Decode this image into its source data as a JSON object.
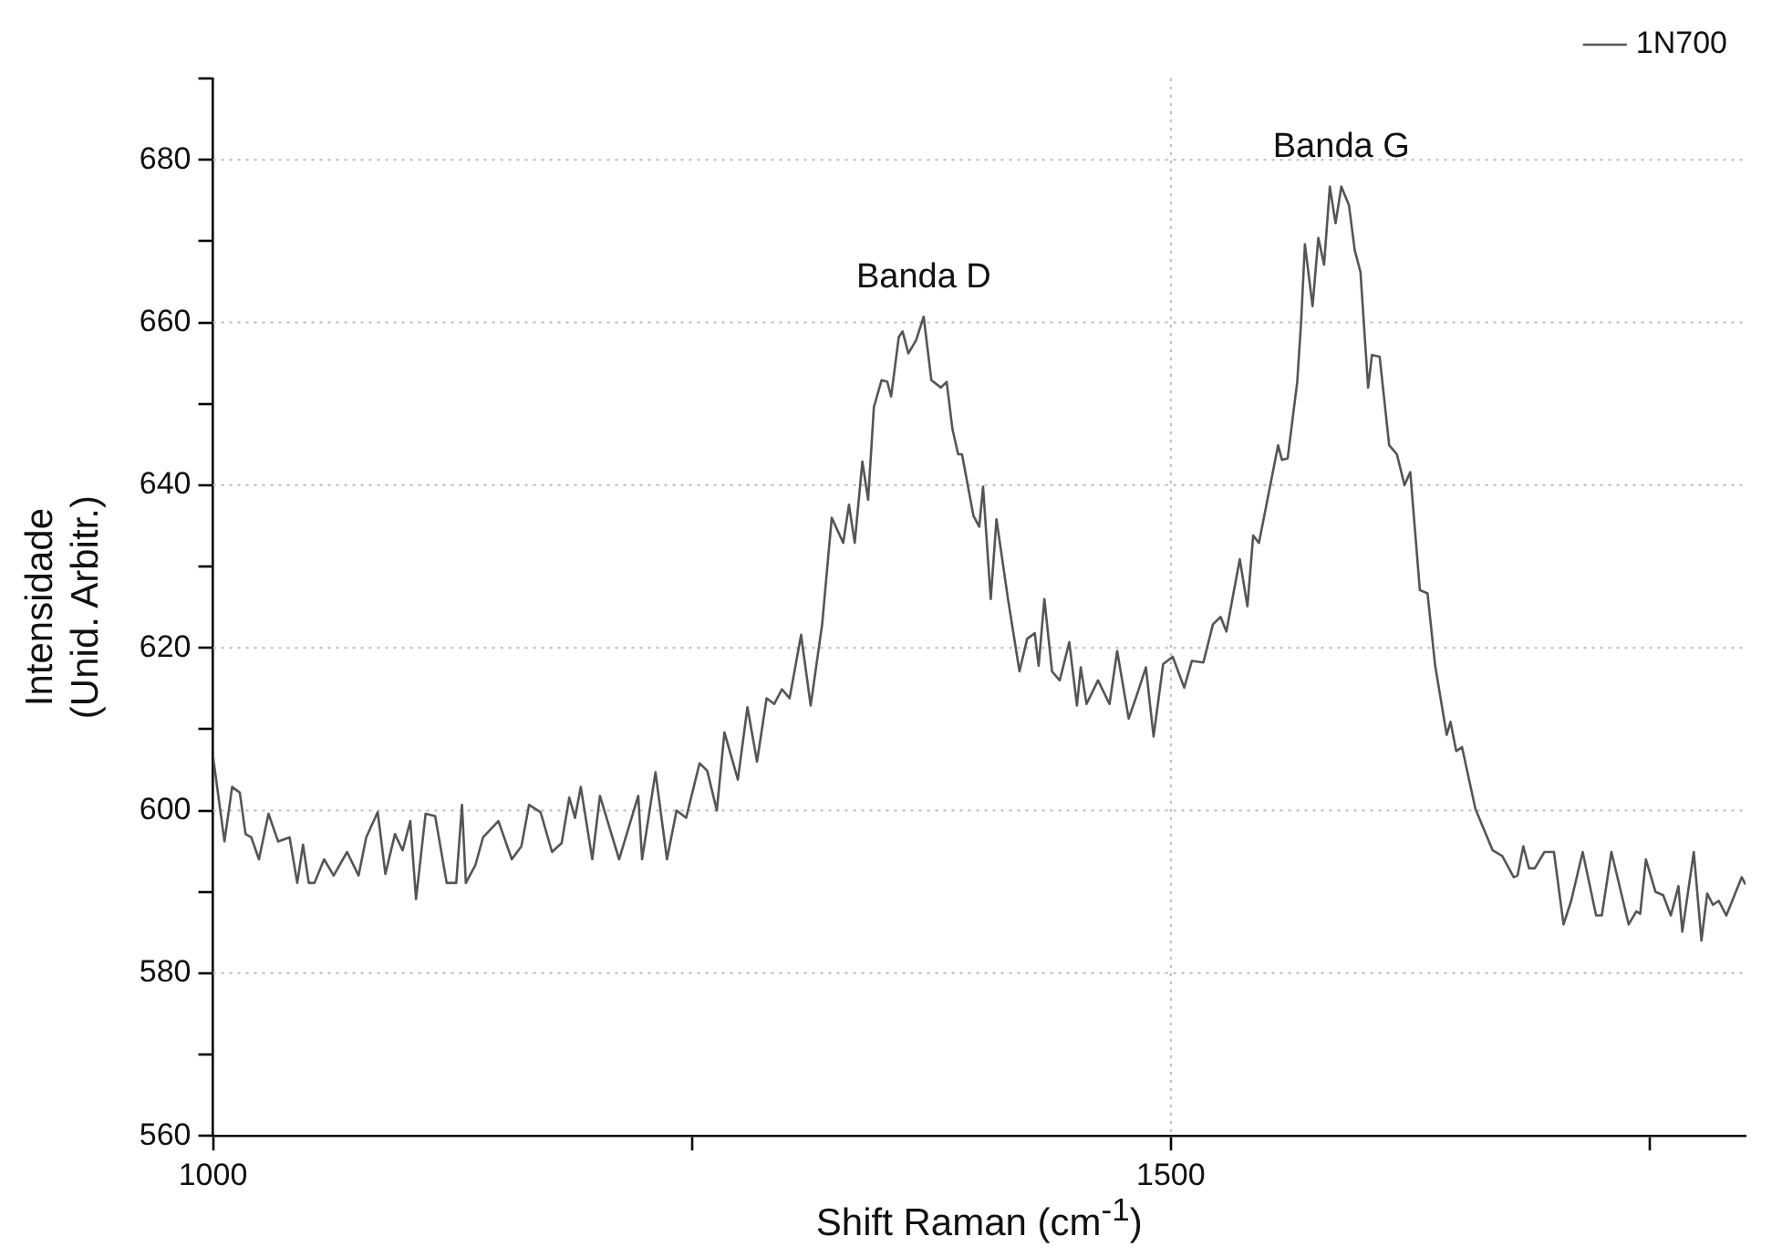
{
  "chart_data": {
    "type": "line",
    "xlabel": "Shift Raman (cm$^{-1}$)",
    "ylabel": "Intensidade (Unid. Arbitr.)",
    "xlim": [
      1000,
      1800
    ],
    "xticks": [
      1000,
      {
        "value": 1250,
        "label": null
      },
      1500,
      {
        "value": 1750,
        "label": null
      }
    ],
    "ylim": [
      560,
      690
    ],
    "yticks": [
      560,
      {
        "value": 570,
        "label": null
      },
      580,
      {
        "value": 590,
        "label": null
      },
      600,
      {
        "value": 610,
        "label": null
      },
      620,
      {
        "value": 630,
        "label": null
      },
      640,
      {
        "value": 650,
        "label": null
      },
      660,
      {
        "value": 670,
        "label": null
      },
      680,
      {
        "value": 690,
        "label": null
      }
    ],
    "grid": true,
    "legend": "top right",
    "marker": "none",
    "line_style": "solid",
    "annotations": [
      {
        "text": "Banda D",
        "x": 1371,
        "y": 660.7
      },
      {
        "text": "Banda G",
        "x": 1589,
        "y": 676.7
      }
    ],
    "series": [
      {
        "name": "1N700",
        "color": "#555555",
        "x": [
          1000,
          1006,
          1010,
          1014,
          1017,
          1020,
          1024,
          1029,
          1034,
          1040,
          1044,
          1047,
          1050,
          1053,
          1058,
          1063,
          1070,
          1076,
          1080,
          1086,
          1090,
          1095,
          1099,
          1103,
          1106,
          1111,
          1116,
          1122,
          1127,
          1130,
          1132,
          1137,
          1141,
          1149,
          1156,
          1161,
          1165,
          1171,
          1177,
          1182,
          1186,
          1189,
          1192,
          1198,
          1202,
          1212,
          1222,
          1224,
          1231,
          1237,
          1242,
          1247,
          1254,
          1258,
          1263,
          1267,
          1274,
          1279,
          1284,
          1289,
          1293,
          1297,
          1301,
          1307,
          1312,
          1318,
          1323,
          1329,
          1332,
          1335,
          1339,
          1342,
          1345,
          1349,
          1352,
          1354,
          1358,
          1360,
          1363,
          1367,
          1371,
          1375,
          1380,
          1383,
          1386,
          1389,
          1391,
          1397,
          1400,
          1402,
          1406,
          1409,
          1415,
          1421,
          1425,
          1429,
          1431,
          1434,
          1438,
          1442,
          1447,
          1451,
          1453,
          1456,
          1462,
          1468,
          1472,
          1478,
          1482,
          1487,
          1491,
          1496,
          1501,
          1507,
          1511,
          1517,
          1522,
          1526,
          1529,
          1536,
          1540,
          1543,
          1546,
          1556,
          1558,
          1561,
          1566,
          1568,
          1570,
          1574,
          1577,
          1580,
          1583,
          1586,
          1589,
          1593,
          1596,
          1599,
          1603,
          1605,
          1609,
          1614,
          1618,
          1622,
          1625,
          1630,
          1634,
          1638,
          1644,
          1646,
          1649,
          1652,
          1659,
          1668,
          1673,
          1679,
          1681,
          1684,
          1687,
          1690,
          1695,
          1700,
          1705,
          1709,
          1715,
          1722,
          1725,
          1730,
          1739,
          1743,
          1745,
          1748,
          1753,
          1757,
          1761,
          1765,
          1767,
          1773,
          1777,
          1780,
          1783,
          1786,
          1790,
          1798,
          1800
        ],
        "values": [
          606.7,
          596.2,
          602.9,
          602.2,
          597.1,
          596.7,
          594.0,
          599.6,
          596.2,
          596.7,
          591.1,
          595.8,
          591.1,
          591.1,
          594.0,
          592.0,
          594.9,
          592.0,
          596.7,
          599.8,
          592.2,
          597.1,
          595.1,
          598.7,
          589.1,
          599.6,
          599.3,
          591.1,
          591.1,
          600.7,
          591.1,
          593.3,
          596.7,
          598.7,
          594.0,
          595.6,
          600.7,
          599.8,
          594.9,
          596.0,
          601.6,
          599.1,
          602.9,
          594.0,
          601.8,
          594.0,
          601.8,
          594.0,
          604.7,
          594.0,
          600.0,
          599.1,
          605.8,
          604.9,
          600.0,
          609.6,
          603.8,
          612.7,
          606.0,
          613.8,
          613.1,
          614.9,
          613.8,
          621.6,
          612.9,
          622.9,
          636.0,
          632.9,
          637.6,
          632.9,
          642.9,
          638.2,
          649.6,
          652.9,
          652.7,
          650.9,
          658.2,
          658.9,
          656.2,
          657.8,
          660.7,
          652.9,
          652.0,
          652.7,
          646.9,
          643.8,
          643.8,
          636.2,
          634.9,
          639.8,
          626.0,
          635.8,
          626.0,
          617.1,
          621.1,
          621.8,
          617.8,
          626.0,
          617.1,
          616.0,
          620.7,
          612.9,
          617.6,
          613.1,
          616.0,
          613.1,
          619.6,
          611.3,
          614.0,
          617.6,
          609.1,
          618.0,
          618.9,
          615.1,
          618.4,
          618.2,
          622.9,
          623.8,
          622.0,
          630.9,
          625.1,
          633.8,
          632.9,
          644.9,
          643.1,
          643.3,
          652.7,
          660.0,
          669.6,
          662.0,
          670.4,
          667.1,
          676.7,
          672.2,
          676.7,
          674.4,
          668.9,
          666.2,
          652.0,
          656.0,
          655.8,
          644.9,
          643.8,
          640.0,
          641.6,
          627.1,
          626.7,
          617.8,
          609.3,
          610.9,
          607.3,
          607.8,
          600.2,
          595.1,
          594.4,
          591.8,
          592.0,
          595.6,
          592.9,
          592.9,
          594.9,
          594.9,
          586.0,
          588.9,
          594.9,
          587.1,
          587.1,
          594.9,
          586.0,
          587.6,
          587.3,
          594.0,
          590.0,
          589.6,
          587.1,
          590.7,
          585.1,
          594.9,
          584.0,
          589.8,
          588.4,
          588.9,
          587.1,
          591.8,
          590.9
        ]
      }
    ]
  }
}
